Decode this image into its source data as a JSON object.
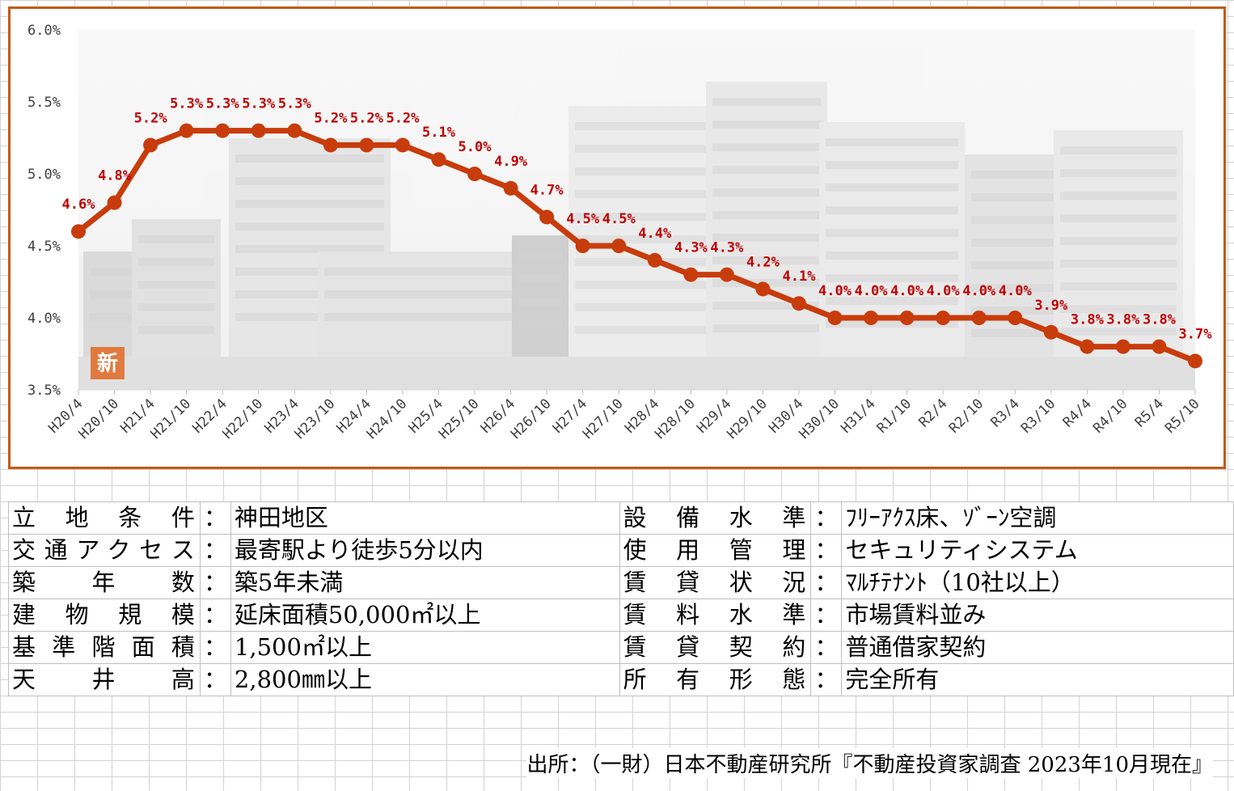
{
  "chart_data": {
    "type": "line",
    "categories": [
      "H20/4",
      "H20/10",
      "H21/4",
      "H21/10",
      "H22/4",
      "H22/10",
      "H23/4",
      "H23/10",
      "H24/4",
      "H24/10",
      "H25/4",
      "H25/10",
      "H26/4",
      "H26/10",
      "H27/4",
      "H27/10",
      "H28/4",
      "H28/10",
      "H29/4",
      "H29/10",
      "H30/4",
      "H30/10",
      "H31/4",
      "R1/10",
      "R2/4",
      "R2/10",
      "R3/4",
      "R3/10",
      "R4/4",
      "R4/10",
      "R5/4",
      "R5/10"
    ],
    "values": [
      4.6,
      4.8,
      5.2,
      5.3,
      5.3,
      5.3,
      5.3,
      5.2,
      5.2,
      5.2,
      5.1,
      5.0,
      4.9,
      4.7,
      4.5,
      4.5,
      4.4,
      4.3,
      4.3,
      4.2,
      4.1,
      4.0,
      4.0,
      4.0,
      4.0,
      4.0,
      4.0,
      3.9,
      3.8,
      3.8,
      3.8,
      3.7
    ],
    "data_labels": [
      "4.6%",
      "4.8%",
      "5.2%",
      "5.3%",
      "5.3%",
      "5.3%",
      "5.3%",
      "5.2%",
      "5.2%",
      "5.2%",
      "5.1%",
      "5.0%",
      "4.9%",
      "4.7%",
      "4.5%",
      "4.5%",
      "4.4%",
      "4.3%",
      "4.3%",
      "4.2%",
      "4.1%",
      "4.0%",
      "4.0%",
      "4.0%",
      "4.0%",
      "4.0%",
      "4.0%",
      "3.9%",
      "3.8%",
      "3.8%",
      "3.8%",
      "3.7%"
    ],
    "ylim": [
      3.5,
      6.0
    ],
    "y_ticks": [
      "3.5%",
      "4.0%",
      "4.5%",
      "5.0%",
      "5.5%",
      "6.0%"
    ],
    "y_tick_values": [
      3.5,
      4.0,
      4.5,
      5.0,
      5.5,
      6.0
    ],
    "line_color": "#c83c0c",
    "label_color": "#c00000",
    "frame_color": "#c55a11",
    "grid": false,
    "legend": "none",
    "badge": "新"
  },
  "table": {
    "rows": [
      {
        "l_label": "立地条件",
        "l_value": "神田地区",
        "r_label": "設備水準",
        "r_value": "ﾌﾘｰｱｸｽ床、ｿﾞｰﾝ空調"
      },
      {
        "l_label": "交通アクセス",
        "l_value": "最寄駅より徒歩5分以内",
        "r_label": "使用管理",
        "r_value": "セキュリティシステム"
      },
      {
        "l_label": "築年数",
        "l_value": "築5年未満",
        "r_label": "賃貸状況",
        "r_value": "ﾏﾙﾁﾃﾅﾝﾄ（10社以上）"
      },
      {
        "l_label": "建物規模",
        "l_value": "延床面積50,000㎡以上",
        "r_label": "賃料水準",
        "r_value": "市場賃料並み"
      },
      {
        "l_label": "基準階面積",
        "l_value": "1,500㎡以上",
        "r_label": "賃貸契約",
        "r_value": "普通借家契約"
      },
      {
        "l_label": "天井高",
        "l_value": "2,800㎜以上",
        "r_label": "所有形態",
        "r_value": "完全所有"
      }
    ],
    "colon": "："
  },
  "source": "出所：（一財）日本不動産研究所『不動産投資家調査 2023年10月現在』"
}
